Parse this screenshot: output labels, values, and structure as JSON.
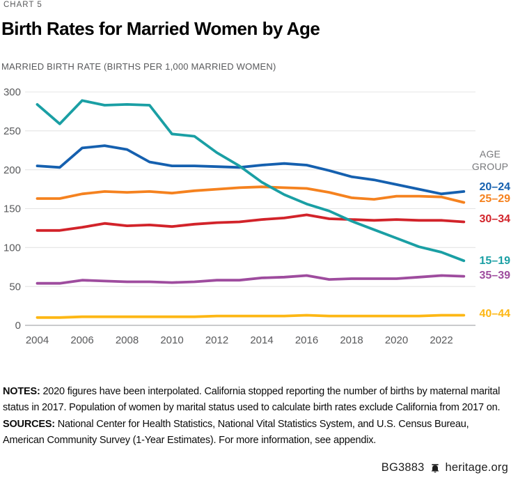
{
  "header": {
    "chart_label": "CHART 5",
    "title": "Birth Rates for Married Women by Age",
    "subtitle": "MARRIED BIRTH RATE (BIRTHS PER 1,000 MARRIED WOMEN)"
  },
  "legend": {
    "header": "AGE GROUP"
  },
  "chart_data": {
    "type": "line",
    "x": [
      2004,
      2005,
      2006,
      2007,
      2008,
      2009,
      2010,
      2011,
      2012,
      2013,
      2014,
      2015,
      2016,
      2017,
      2018,
      2019,
      2020,
      2021,
      2022,
      2023
    ],
    "x_tick_labels": [
      "2004",
      "2006",
      "2008",
      "2010",
      "2012",
      "2014",
      "2016",
      "2018",
      "2020",
      "2022"
    ],
    "yticks": [
      0,
      50,
      100,
      150,
      200,
      250,
      300
    ],
    "ylim": [
      0,
      300
    ],
    "grid": "horizontal",
    "legend_position": "right",
    "series": [
      {
        "name": "20–24",
        "color": "#1560AF",
        "values": [
          205,
          203,
          228,
          231,
          226,
          210,
          205,
          205,
          204,
          203,
          206,
          208,
          206,
          199,
          191,
          187,
          181,
          175,
          169,
          172
        ]
      },
      {
        "name": "25–29",
        "color": "#F5821F",
        "values": [
          163,
          163,
          169,
          172,
          171,
          172,
          170,
          173,
          175,
          177,
          178,
          177,
          176,
          171,
          164,
          162,
          166,
          166,
          165,
          158
        ]
      },
      {
        "name": "30–34",
        "color": "#D2232A",
        "values": [
          122,
          122,
          126,
          131,
          128,
          129,
          127,
          130,
          132,
          133,
          136,
          138,
          142,
          137,
          136,
          135,
          136,
          135,
          135,
          133
        ]
      },
      {
        "name": "15–19",
        "color": "#1A9FA4",
        "values": [
          284,
          259,
          289,
          283,
          284,
          283,
          246,
          243,
          222,
          205,
          184,
          168,
          156,
          147,
          134,
          123,
          112,
          101,
          94,
          83
        ]
      },
      {
        "name": "35–39",
        "color": "#9E4C9E",
        "values": [
          54,
          54,
          58,
          57,
          56,
          56,
          55,
          56,
          58,
          58,
          61,
          62,
          64,
          59,
          60,
          60,
          60,
          62,
          64,
          63
        ]
      },
      {
        "name": "40–44",
        "color": "#FDB714",
        "values": [
          10,
          10,
          11,
          11,
          11,
          11,
          11,
          11,
          12,
          12,
          12,
          12,
          13,
          12,
          12,
          12,
          12,
          12,
          13,
          13
        ]
      }
    ]
  },
  "notes": {
    "label": "NOTES:",
    "text": "2020 figures have been interpolated. California stopped reporting the number of births by maternal marital status in 2017. Population of women by marital status used to calculate birth rates exclude California from 2017 on."
  },
  "sources": {
    "label": "SOURCES:",
    "text": "National Center for Health Statistics, National Vital Statistics System, and U.S. Census Bureau, American Community Survey (1-Year Estimates). For more information, see appendix."
  },
  "footer": {
    "report_id": "BG3883",
    "site": "heritage.org"
  }
}
